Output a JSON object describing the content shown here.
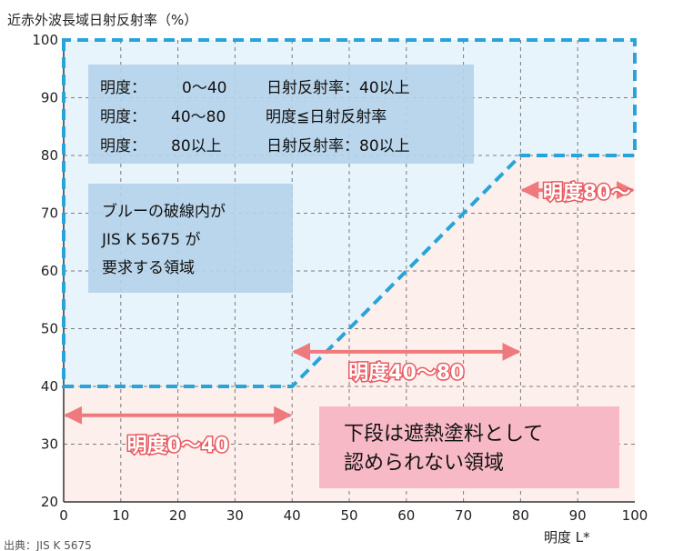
{
  "chart_data": {
    "type": "area",
    "title": "",
    "ylabel": "近赤外波長域日射反射率（%）",
    "xlabel": "明度 L*",
    "xlim": [
      0,
      100
    ],
    "ylim": [
      20,
      100
    ],
    "x_ticks": [
      "0",
      "10",
      "20",
      "30",
      "40",
      "50",
      "60",
      "70",
      "80",
      "90",
      "100"
    ],
    "y_ticks": [
      "20",
      "30",
      "40",
      "50",
      "60",
      "70",
      "80",
      "90",
      "100"
    ],
    "grid": true,
    "boundary": {
      "x": [
        0,
        40,
        80,
        100
      ],
      "y": [
        40,
        40,
        80,
        80
      ]
    },
    "criteria_box": {
      "lines": [
        [
          "明度：",
          "0〜40",
          "日射反射率：40以上"
        ],
        [
          "明度：",
          "40〜80",
          "明度≦日射反射率"
        ],
        [
          "明度：",
          "80以上",
          "日射反射率：80以上"
        ]
      ]
    },
    "blue_note": [
      "ブルーの破線内が",
      "JIS K 5675 が",
      "要求する領域"
    ],
    "ranges": [
      {
        "label": "明度0〜40",
        "from": 0,
        "to": 40,
        "y": 35
      },
      {
        "label": "明度40〜80",
        "from": 40,
        "to": 80,
        "y": 46
      },
      {
        "label": "明度80〜",
        "from": 80,
        "to": 100,
        "y": 74
      }
    ],
    "pink_note": [
      "下段は遮熱塗料として",
      "認められない領域"
    ],
    "colors": {
      "blue_region": "#e8f4fb",
      "pink_region": "#fdf0ec",
      "boundary": "#2aa3d8",
      "arrow": "#ef7a7d",
      "box_blue": "#b5d3ea",
      "box_pink": "#f7b9c5"
    }
  },
  "footer": "出典：JIS K 5675"
}
